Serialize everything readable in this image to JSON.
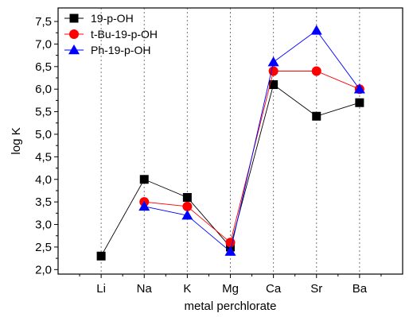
{
  "chart_data": {
    "type": "line",
    "categories": [
      "Li",
      "Na",
      "K",
      "Mg",
      "Ca",
      "Sr",
      "Ba"
    ],
    "xlabel": "metal perchlorate",
    "ylabel": "log K",
    "ylim": [
      1.9,
      7.8
    ],
    "yticks": [
      "2,0",
      "2,5",
      "3,0",
      "3,5",
      "4,0",
      "4,5",
      "5,0",
      "5,5",
      "6,0",
      "6,5",
      "7,0",
      "7,5"
    ],
    "ytick_values": [
      2.0,
      2.5,
      3.0,
      3.5,
      4.0,
      4.5,
      5.0,
      5.5,
      6.0,
      6.5,
      7.0,
      7.5
    ],
    "grid": "vertical dotted lines at each category",
    "legend_position": "top-left",
    "series": [
      {
        "name": "19-p-OH",
        "marker": "square",
        "color": "#000000",
        "values": [
          2.3,
          4.0,
          3.6,
          2.5,
          6.1,
          5.4,
          5.7
        ]
      },
      {
        "name": "t-Bu-19-p-OH",
        "marker": "circle",
        "color": "#ff0000",
        "values": [
          null,
          3.5,
          3.4,
          2.6,
          6.4,
          6.4,
          6.0
        ]
      },
      {
        "name": "Ph-19-p-OH",
        "marker": "triangle",
        "color": "#0000ff",
        "values": [
          null,
          3.4,
          3.2,
          2.4,
          6.6,
          7.3,
          6.0
        ]
      }
    ]
  }
}
